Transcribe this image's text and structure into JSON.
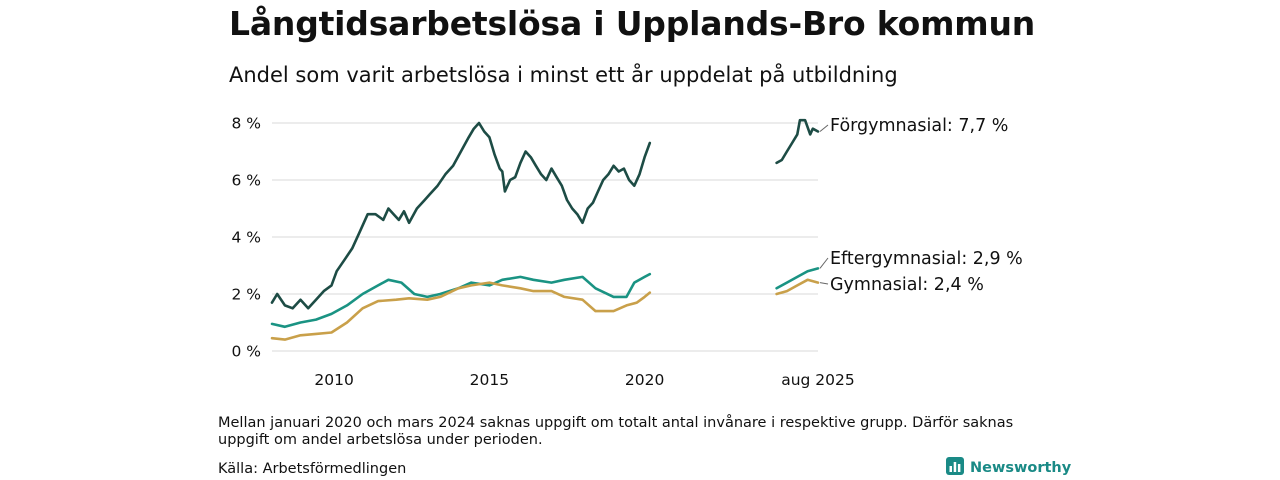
{
  "header": {
    "title": "Långtidsarbetslösa i Upplands-Bro kommun",
    "subtitle": "Andel som varit arbetslösa i minst ett år uppdelat på utbildning"
  },
  "footer": {
    "note": "Mellan januari 2020 och mars 2024 saknas uppgift om totalt antal invånare i respektive grupp. Därför saknas uppgift om andel arbetslösa under perioden.",
    "source": "Källa: Arbetsförmedlingen",
    "brand": "Newsworthy"
  },
  "colors": {
    "forgymnasial": "#1d4c45",
    "eftergymnasial": "#1a9383",
    "gymnasial": "#c9a04a",
    "grid": "#d9d9d9",
    "brand": "#1a8a86"
  },
  "chart_data": {
    "type": "line",
    "title": "Långtidsarbetslösa i Upplands-Bro kommun",
    "subtitle": "Andel som varit arbetslösa i minst ett år uppdelat på utbildning",
    "xlabel": "",
    "ylabel": "",
    "x_range": [
      "2008-01",
      "2025-08"
    ],
    "x_ticks": [
      {
        "date": "2010-01",
        "label": "2010"
      },
      {
        "date": "2015-01",
        "label": "2015"
      },
      {
        "date": "2020-01",
        "label": "2020"
      },
      {
        "date": "2025-08",
        "label": "aug 2025"
      }
    ],
    "ylim": [
      0,
      8
    ],
    "y_ticks": [
      {
        "value": 0,
        "label": "0 %"
      },
      {
        "value": 2,
        "label": "2 %"
      },
      {
        "value": 4,
        "label": "4 %"
      },
      {
        "value": 6,
        "label": "6 %"
      },
      {
        "value": 8,
        "label": "8 %"
      }
    ],
    "grid": "horizontal",
    "legend": "end labels at right of lines",
    "series": [
      {
        "name": "Förgymnasial",
        "end_label": "Förgymnasial: 7,7 %",
        "color_key": "forgymnasial",
        "segments": [
          [
            [
              "2008-01",
              1.7
            ],
            [
              "2008-03",
              2.0
            ],
            [
              "2008-06",
              1.6
            ],
            [
              "2008-09",
              1.5
            ],
            [
              "2008-12",
              1.8
            ],
            [
              "2009-03",
              1.5
            ],
            [
              "2009-06",
              1.8
            ],
            [
              "2009-09",
              2.1
            ],
            [
              "2009-12",
              2.3
            ],
            [
              "2010-02",
              2.8
            ],
            [
              "2010-05",
              3.2
            ],
            [
              "2010-08",
              3.6
            ],
            [
              "2010-11",
              4.2
            ],
            [
              "2011-02",
              4.8
            ],
            [
              "2011-05",
              4.8
            ],
            [
              "2011-08",
              4.6
            ],
            [
              "2011-10",
              5.0
            ],
            [
              "2011-12",
              4.8
            ],
            [
              "2012-02",
              4.6
            ],
            [
              "2012-04",
              4.9
            ],
            [
              "2012-06",
              4.5
            ],
            [
              "2012-09",
              5.0
            ],
            [
              "2012-12",
              5.3
            ],
            [
              "2013-02",
              5.5
            ],
            [
              "2013-05",
              5.8
            ],
            [
              "2013-08",
              6.2
            ],
            [
              "2013-11",
              6.5
            ],
            [
              "2014-02",
              7.0
            ],
            [
              "2014-05",
              7.5
            ],
            [
              "2014-07",
              7.8
            ],
            [
              "2014-09",
              8.0
            ],
            [
              "2014-11",
              7.7
            ],
            [
              "2015-01",
              7.5
            ],
            [
              "2015-03",
              6.9
            ],
            [
              "2015-05",
              6.4
            ],
            [
              "2015-06",
              6.3
            ],
            [
              "2015-07",
              5.6
            ],
            [
              "2015-09",
              6.0
            ],
            [
              "2015-11",
              6.1
            ],
            [
              "2016-01",
              6.6
            ],
            [
              "2016-03",
              7.0
            ],
            [
              "2016-05",
              6.8
            ],
            [
              "2016-07",
              6.5
            ],
            [
              "2016-09",
              6.2
            ],
            [
              "2016-11",
              6.0
            ],
            [
              "2017-01",
              6.4
            ],
            [
              "2017-03",
              6.1
            ],
            [
              "2017-05",
              5.8
            ],
            [
              "2017-07",
              5.3
            ],
            [
              "2017-09",
              5.0
            ],
            [
              "2017-11",
              4.8
            ],
            [
              "2018-01",
              4.5
            ],
            [
              "2018-03",
              5.0
            ],
            [
              "2018-05",
              5.2
            ],
            [
              "2018-07",
              5.6
            ],
            [
              "2018-09",
              6.0
            ],
            [
              "2018-11",
              6.2
            ],
            [
              "2019-01",
              6.5
            ],
            [
              "2019-03",
              6.3
            ],
            [
              "2019-05",
              6.4
            ],
            [
              "2019-07",
              6.0
            ],
            [
              "2019-09",
              5.8
            ],
            [
              "2019-11",
              6.2
            ],
            [
              "2020-01",
              6.8
            ],
            [
              "2020-03",
              7.3
            ]
          ],
          [
            [
              "2024-04",
              6.6
            ],
            [
              "2024-06",
              6.7
            ],
            [
              "2024-08",
              7.0
            ],
            [
              "2024-10",
              7.3
            ],
            [
              "2024-12",
              7.6
            ],
            [
              "2025-01",
              8.1
            ],
            [
              "2025-03",
              8.1
            ],
            [
              "2025-05",
              7.6
            ],
            [
              "2025-06",
              7.8
            ],
            [
              "2025-08",
              7.7
            ]
          ]
        ]
      },
      {
        "name": "Eftergymnasial",
        "end_label": "Eftergymnasial: 2,9 %",
        "color_key": "eftergymnasial",
        "segments": [
          [
            [
              "2008-01",
              0.95
            ],
            [
              "2008-06",
              0.85
            ],
            [
              "2008-12",
              1.0
            ],
            [
              "2009-06",
              1.1
            ],
            [
              "2009-12",
              1.3
            ],
            [
              "2010-06",
              1.6
            ],
            [
              "2010-12",
              2.0
            ],
            [
              "2011-06",
              2.3
            ],
            [
              "2011-10",
              2.5
            ],
            [
              "2012-03",
              2.4
            ],
            [
              "2012-08",
              2.0
            ],
            [
              "2013-01",
              1.9
            ],
            [
              "2013-06",
              2.0
            ],
            [
              "2014-01",
              2.2
            ],
            [
              "2014-06",
              2.4
            ],
            [
              "2015-01",
              2.3
            ],
            [
              "2015-06",
              2.5
            ],
            [
              "2016-01",
              2.6
            ],
            [
              "2016-06",
              2.5
            ],
            [
              "2017-01",
              2.4
            ],
            [
              "2017-06",
              2.5
            ],
            [
              "2018-01",
              2.6
            ],
            [
              "2018-06",
              2.2
            ],
            [
              "2019-01",
              1.9
            ],
            [
              "2019-06",
              1.9
            ],
            [
              "2019-09",
              2.4
            ],
            [
              "2020-01",
              2.6
            ],
            [
              "2020-03",
              2.7
            ]
          ],
          [
            [
              "2024-04",
              2.2
            ],
            [
              "2024-08",
              2.4
            ],
            [
              "2024-12",
              2.6
            ],
            [
              "2025-04",
              2.8
            ],
            [
              "2025-08",
              2.9
            ]
          ]
        ]
      },
      {
        "name": "Gymnasial",
        "end_label": "Gymnasial: 2,4 %",
        "color_key": "gymnasial",
        "segments": [
          [
            [
              "2008-01",
              0.45
            ],
            [
              "2008-06",
              0.4
            ],
            [
              "2008-12",
              0.55
            ],
            [
              "2009-06",
              0.6
            ],
            [
              "2009-12",
              0.65
            ],
            [
              "2010-06",
              1.0
            ],
            [
              "2010-12",
              1.5
            ],
            [
              "2011-06",
              1.75
            ],
            [
              "2012-01",
              1.8
            ],
            [
              "2012-06",
              1.85
            ],
            [
              "2013-01",
              1.8
            ],
            [
              "2013-06",
              1.9
            ],
            [
              "2014-01",
              2.2
            ],
            [
              "2014-06",
              2.3
            ],
            [
              "2015-01",
              2.4
            ],
            [
              "2015-06",
              2.3
            ],
            [
              "2016-01",
              2.2
            ],
            [
              "2016-06",
              2.1
            ],
            [
              "2017-01",
              2.1
            ],
            [
              "2017-06",
              1.9
            ],
            [
              "2018-01",
              1.8
            ],
            [
              "2018-06",
              1.4
            ],
            [
              "2019-01",
              1.4
            ],
            [
              "2019-06",
              1.6
            ],
            [
              "2019-10",
              1.7
            ],
            [
              "2020-01",
              1.9
            ],
            [
              "2020-03",
              2.05
            ]
          ],
          [
            [
              "2024-04",
              2.0
            ],
            [
              "2024-08",
              2.1
            ],
            [
              "2024-12",
              2.3
            ],
            [
              "2025-04",
              2.5
            ],
            [
              "2025-08",
              2.4
            ]
          ]
        ]
      }
    ]
  }
}
